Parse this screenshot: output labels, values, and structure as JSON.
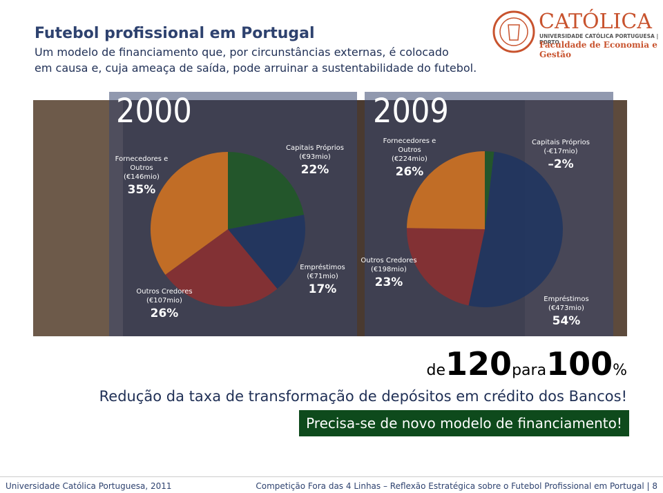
{
  "header": {
    "title": "Futebol profissional em Portugal",
    "subtitle_lines": [
      "Um modelo de financiamento que, por circunstâncias externas, é colocado",
      "em causa e, cuja ameaça de saída, pode arruinar a sustentabilidade do futebol."
    ]
  },
  "logo": {
    "name": "CATÓLICA",
    "line1": "UNIVERSIDADE CATÓLICA PORTUGUESA | PORTO",
    "line2": "Faculdade de Economia e Gestão"
  },
  "chart_data": [
    {
      "type": "pie",
      "title": "2000",
      "categories": [
        "Capitais Próprios",
        "Empréstimos",
        "Outros Credores",
        "Fornecedores e Outros"
      ],
      "details": [
        "(€93mio)",
        "(€71mio)",
        "(€107mio)",
        "(€146mio)"
      ],
      "values": [
        22,
        17,
        26,
        35
      ],
      "value_labels": [
        "22%",
        "17%",
        "26%",
        "35%"
      ],
      "colors": [
        "#1f5a25",
        "#1f3560",
        "#8e2f2f",
        "#d8761f"
      ]
    },
    {
      "type": "pie",
      "title": "2009",
      "categories": [
        "Capitais Próprios",
        "Empréstimos",
        "Outros Credores",
        "Fornecedores e Outros"
      ],
      "details": [
        "(-€17mio)",
        "(€473mio)",
        "(€198mio)",
        "(€224mio)"
      ],
      "values": [
        -2,
        54,
        23,
        26
      ],
      "value_labels": [
        "–2%",
        "54%",
        "23%",
        "26%"
      ],
      "colors": [
        "#1f5a25",
        "#1f3560",
        "#8e2f2f",
        "#d8761f"
      ]
    }
  ],
  "reduction": {
    "prefix": "de",
    "from": 120,
    "middle": "para",
    "to": 100,
    "suffix": "%"
  },
  "statement": "Redução da taxa de transformação de depósitos em crédito dos Bancos!",
  "callout": "Precisa-se de novo modelo de financiamento!",
  "footer": {
    "left": "Universidade Católica Portuguesa, 2011",
    "right": "Competição Fora das 4 Linhas – Reflexão Estratégica sobre o Futebol Profissional em Portugal | 8"
  }
}
